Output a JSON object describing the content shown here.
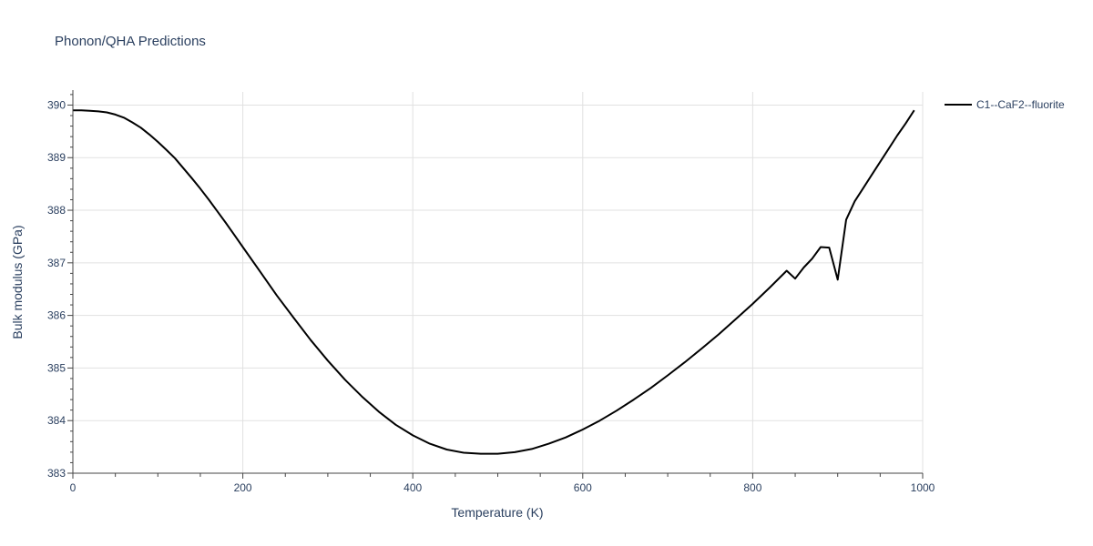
{
  "chart_data": {
    "type": "line",
    "title": "Phonon/QHA Predictions",
    "xlabel": "Temperature (K)",
    "ylabel": "Bulk modulus (GPa)",
    "xlim": [
      0,
      1000
    ],
    "ylim": [
      383,
      390.25
    ],
    "xticks": [
      0,
      200,
      400,
      600,
      800,
      1000
    ],
    "yticks": [
      383,
      384,
      385,
      386,
      387,
      388,
      389,
      390
    ],
    "grid": true,
    "legend_position": "top-right",
    "series": [
      {
        "name": "C1--CaF2--fluorite",
        "color": "#000000",
        "x": [
          0,
          10,
          20,
          30,
          40,
          50,
          60,
          70,
          80,
          90,
          100,
          110,
          120,
          130,
          140,
          150,
          160,
          170,
          180,
          190,
          200,
          220,
          240,
          260,
          280,
          300,
          320,
          340,
          360,
          380,
          400,
          420,
          440,
          460,
          480,
          500,
          520,
          540,
          560,
          580,
          600,
          620,
          640,
          660,
          680,
          700,
          720,
          740,
          760,
          780,
          800,
          820,
          840,
          850,
          860,
          870,
          880,
          890,
          900,
          910,
          920,
          930,
          940,
          950,
          960,
          970,
          980,
          990
        ],
        "y": [
          389.9,
          389.9,
          389.89,
          389.88,
          389.86,
          389.82,
          389.76,
          389.67,
          389.57,
          389.44,
          389.3,
          389.15,
          388.99,
          388.8,
          388.61,
          388.41,
          388.2,
          387.98,
          387.76,
          387.53,
          387.3,
          386.84,
          386.38,
          385.95,
          385.53,
          385.14,
          384.78,
          384.46,
          384.17,
          383.92,
          383.72,
          383.56,
          383.45,
          383.39,
          383.37,
          383.37,
          383.4,
          383.46,
          383.56,
          383.68,
          383.83,
          384.0,
          384.19,
          384.4,
          384.62,
          384.86,
          385.11,
          385.37,
          385.64,
          385.93,
          386.22,
          386.53,
          386.85,
          386.7,
          386.91,
          387.08,
          387.3,
          387.29,
          386.68,
          387.82,
          388.17,
          388.42,
          388.67,
          388.92,
          389.17,
          389.42,
          389.65,
          389.9
        ]
      }
    ]
  }
}
